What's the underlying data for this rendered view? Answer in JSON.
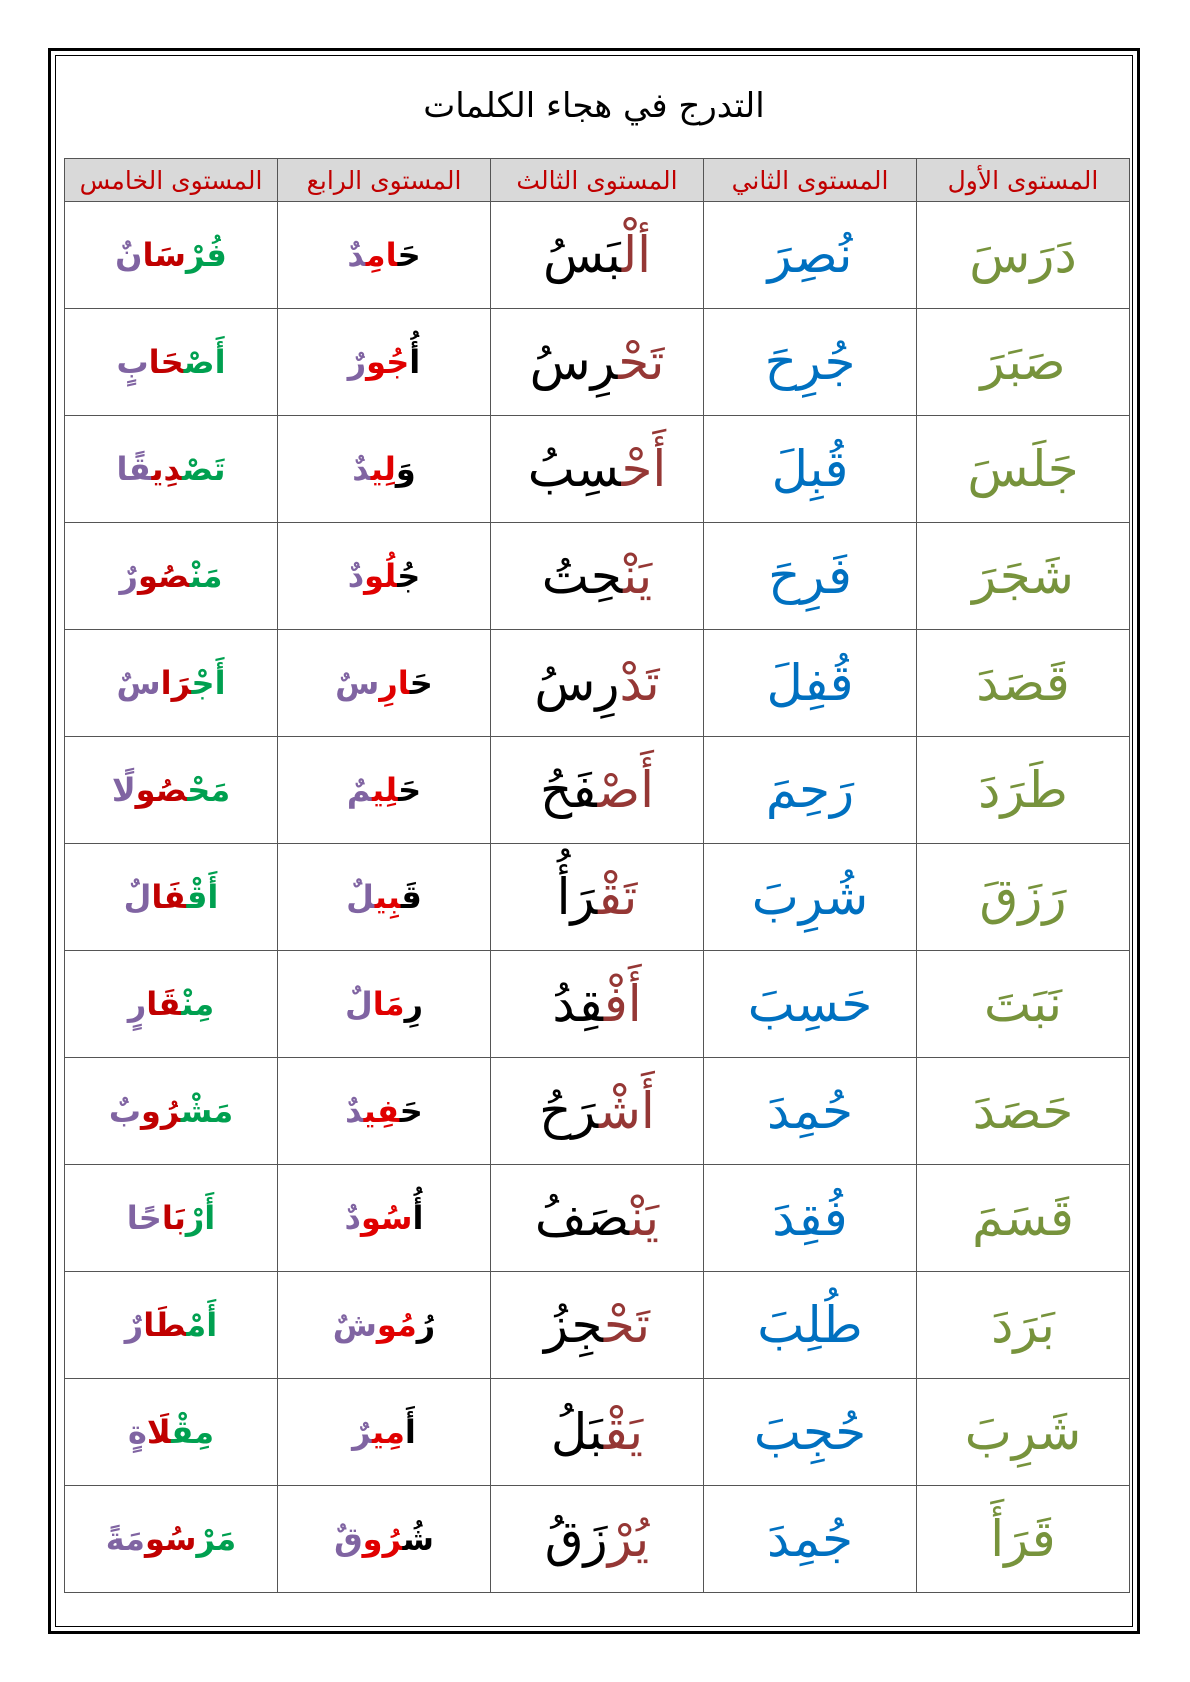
{
  "title": "التدرج في هجاء الكلمات",
  "colors": {
    "level1": "#77933C",
    "level2": "#0070C0",
    "brown": "#953735",
    "black": "#000000",
    "red": "#E00000",
    "darkred": "#C00000",
    "purple": "#8064A2",
    "green": "#00A050",
    "header_text": "#C00000",
    "header_bg": "#D9D9D9"
  },
  "headers": [
    "المستوى الأول",
    "المستوى الثاني",
    "المستوى الثالث",
    "المستوى الرابع",
    "المستوى الخامس"
  ],
  "level1": [
    "دَرَسَ",
    "صَبَرَ",
    "جَلَسَ",
    "شَجَرَ",
    "قَصَدَ",
    "طَرَدَ",
    "رَزَقَ",
    "نَبَتَ",
    "حَصَدَ",
    "قَسَمَ",
    "بَرَدَ",
    "شَرِبَ",
    "قَرَأَ"
  ],
  "level2": [
    "نُصِرَ",
    "جُرِحَ",
    "قُبِلَ",
    "فَرِحَ",
    "قُفِلَ",
    "رَحِمَ",
    "شُرِبَ",
    "حَسِبَ",
    "حُمِدَ",
    "فُقِدَ",
    "طُلِبَ",
    "حُجِبَ",
    "جُمِدَ"
  ],
  "level3": [
    [
      "ألْ",
      "بَسُ"
    ],
    [
      "تَحْ",
      "رِسُ"
    ],
    [
      "أَحْ",
      "سِبُ"
    ],
    [
      "يَنْ",
      "حِتُ"
    ],
    [
      "تَدْ",
      "رِسُ"
    ],
    [
      "أَصْ",
      "فَحُ"
    ],
    [
      "تَقْ",
      "رَأُ"
    ],
    [
      "أَفْ",
      "قِدُ"
    ],
    [
      "أَشْ",
      "رَحُ"
    ],
    [
      "يَنْ",
      "صَفُ"
    ],
    [
      "تَحْ",
      "جِزُ"
    ],
    [
      "يَقْ",
      "بَلُ"
    ],
    [
      "يُرْ",
      "زَقُ"
    ]
  ],
  "level4": [
    [
      "حَ",
      "امِ",
      "دٌ"
    ],
    [
      "أُ",
      "جُو",
      "رٌ"
    ],
    [
      "وَ",
      "لِي",
      "دٌ"
    ],
    [
      "جُ",
      "لُو",
      "دٌ"
    ],
    [
      "حَ",
      "ارِ",
      "سٌ"
    ],
    [
      "حَ",
      "لِي",
      "مٌ"
    ],
    [
      "قَ",
      "بِي",
      "لٌ"
    ],
    [
      "رِ",
      "مَا",
      "لٌ"
    ],
    [
      "حَ",
      "فِي",
      "دٌ"
    ],
    [
      "أُ",
      "سُو",
      "دٌ"
    ],
    [
      "رُ",
      "مُو",
      "شٌ"
    ],
    [
      "أَ",
      "مِي",
      "رٌ"
    ],
    [
      "شُ",
      "رُو",
      "قٌ"
    ]
  ],
  "level5": [
    [
      "فُرْ",
      "سَا",
      "نٌ"
    ],
    [
      "أَصْ",
      "حَا",
      "بٍ"
    ],
    [
      "تَصْ",
      "دِي",
      "قًا"
    ],
    [
      "مَنْ",
      "صُو",
      "رٌ"
    ],
    [
      "أَجْ",
      "رَا",
      "سٌ"
    ],
    [
      "مَحْ",
      "صُو",
      "لًا"
    ],
    [
      "أَقْ",
      "فَا",
      "لٌ"
    ],
    [
      "مِنْ",
      "قَا",
      "رٍ"
    ],
    [
      "مَشْ",
      "رُو",
      "بٌ"
    ],
    [
      "أَرْ",
      "بَا",
      "حًا"
    ],
    [
      "أَمْ",
      "طَا",
      "رٌ"
    ],
    [
      "مِقْ",
      "لَا",
      "ةٍ"
    ],
    [
      "مَرْ",
      "سُو",
      "مَةً"
    ]
  ]
}
